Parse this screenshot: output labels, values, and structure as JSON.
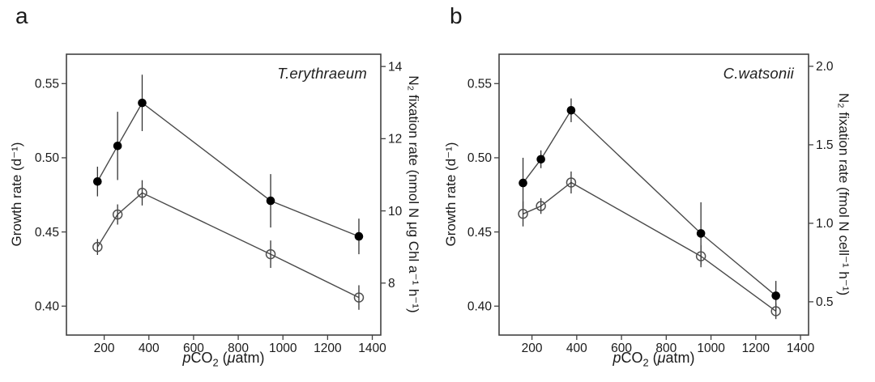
{
  "figure": {
    "background": "#ffffff",
    "axis_color": "#414141",
    "line_color": "#4a4a4a",
    "error_bar_color": "#333333",
    "marker_filled_color": "#000000",
    "marker_open_stroke": "#4f4f4f",
    "text_color": "#1a1a1a"
  },
  "chart_data": [
    {
      "type": "line",
      "panel_label": "a",
      "species": "T.erythraeum",
      "xlabel": "pCO₂ (μatm)",
      "xlabel_parts": [
        "p",
        "CO",
        "2",
        " (",
        "μ",
        "atm)"
      ],
      "ylabel_left": "Growth rate (d⁻¹)",
      "ylabel_right": "N₂ fixation rate (nmol N μg Chl a⁻¹ h⁻¹)",
      "x": [
        170,
        260,
        370,
        945,
        1340
      ],
      "series": [
        {
          "name": "Growth rate",
          "axis": "left",
          "marker": "filled-circle",
          "values": [
            0.484,
            0.508,
            0.537,
            0.471,
            0.447
          ],
          "errors": [
            0.01,
            0.023,
            0.019,
            0.018,
            0.012
          ]
        },
        {
          "name": "N₂ fixation rate",
          "axis": "right",
          "marker": "open-circle",
          "values": [
            9.0,
            9.9,
            10.5,
            8.8,
            7.6
          ],
          "errors": [
            0.22,
            0.28,
            0.35,
            0.38,
            0.34
          ]
        }
      ],
      "xticks": [
        "200",
        "400",
        "600",
        "800",
        "1000",
        "1200",
        "1400"
      ],
      "yticks_left": [
        "0.40",
        "0.45",
        "0.50",
        "0.55"
      ],
      "yticks_right": [
        "8",
        "10",
        "12",
        "14"
      ],
      "xlim": [
        31,
        1438
      ],
      "ylim_left": [
        0.3805,
        0.5698
      ],
      "ylim_right": [
        6.56,
        14.34
      ],
      "grid": false,
      "legend": "none"
    },
    {
      "type": "line",
      "panel_label": "b",
      "species": "C.watsonii",
      "xlabel": "pCO₂ (μatm)",
      "xlabel_parts": [
        "p",
        "CO",
        "2",
        " (",
        "μ",
        "atm)"
      ],
      "ylabel_left": "Growth rate (d⁻¹)",
      "ylabel_right": "N₂ fixation rate (fmol N cell⁻¹ h⁻¹)",
      "x": [
        160,
        240,
        375,
        955,
        1290
      ],
      "series": [
        {
          "name": "Growth rate",
          "axis": "left",
          "marker": "filled-circle",
          "values": [
            0.483,
            0.499,
            0.532,
            0.449,
            0.407
          ],
          "errors": [
            0.017,
            0.006,
            0.008,
            0.021,
            0.01
          ]
        },
        {
          "name": "N₂ fixation rate",
          "axis": "right",
          "marker": "open-circle",
          "values": [
            1.06,
            1.11,
            1.26,
            0.79,
            0.44
          ],
          "errors": [
            0.08,
            0.05,
            0.07,
            0.07,
            0.05
          ]
        }
      ],
      "xticks": [
        "200",
        "400",
        "600",
        "800",
        "1000",
        "1200",
        "1400"
      ],
      "yticks_left": [
        "0.40",
        "0.45",
        "0.50",
        "0.55"
      ],
      "yticks_right": [
        "0.5",
        "1.0",
        "1.5",
        "2.0"
      ],
      "xlim": [
        53,
        1436
      ],
      "ylim_left": [
        0.3805,
        0.5698
      ],
      "ylim_right": [
        0.288,
        2.077
      ],
      "grid": false,
      "legend": "none"
    }
  ]
}
